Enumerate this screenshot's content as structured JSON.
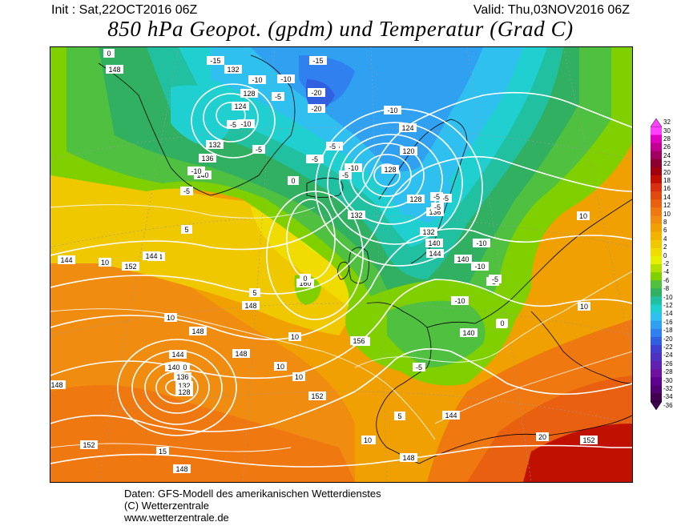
{
  "header": {
    "init_label": "Init : Sat,22OCT2016 06Z",
    "valid_label": "Valid: Thu,03NOV2016 06Z",
    "title": "850 hPa Geopot. (gpdm) und Temperatur (Grad C)"
  },
  "map": {
    "region": "Europe / North Atlantic",
    "colors": {
      "coastline": "#000000",
      "geopotential_isolines": "#ffffff",
      "lat_lon_grid": "#9a9a9a"
    },
    "geopotential_labels": [
      "148",
      "132",
      "128",
      "124",
      "132",
      "136",
      "140",
      "144",
      "152",
      "148",
      "132",
      "124",
      "120",
      "128",
      "128",
      "136",
      "132",
      "140",
      "144",
      "140",
      "156",
      "160",
      "148",
      "144",
      "144",
      "148",
      "156",
      "152",
      "140",
      "144",
      "140",
      "136",
      "132",
      "128",
      "148",
      "152",
      "148",
      "148",
      "144",
      "140",
      "152"
    ],
    "temperature_labels": [
      "0",
      "-15",
      "-10",
      "-5",
      "-15",
      "-20",
      "-10",
      "-5",
      "-10",
      "-5",
      "-10",
      "-20",
      "-5",
      "-10",
      "-5",
      "-10",
      "-5",
      "-10",
      "-5",
      "-5",
      "0",
      "-5",
      "-5",
      "-10",
      "-5",
      "0",
      "5",
      "10",
      "5",
      "0",
      "10",
      "10",
      "5",
      "10",
      "10",
      "10",
      "10",
      "-10",
      "-5",
      "-5",
      "-10",
      "0",
      "-5",
      "5",
      "10",
      "15",
      "20",
      "10"
    ]
  },
  "colorbar": {
    "labels": [
      "32",
      "30",
      "28",
      "26",
      "24",
      "22",
      "20",
      "18",
      "16",
      "14",
      "12",
      "10",
      "8",
      "6",
      "4",
      "2",
      "0",
      "-2",
      "-4",
      "-6",
      "-8",
      "-10",
      "-12",
      "-14",
      "-16",
      "-18",
      "-20",
      "-22",
      "-24",
      "-26",
      "-28",
      "-30",
      "-32",
      "-34",
      "-36"
    ],
    "colors": [
      "#ff40ff",
      "#e000c0",
      "#c00090",
      "#a00060",
      "#8a0030",
      "#a00010",
      "#c01000",
      "#d83010",
      "#e04a10",
      "#e86010",
      "#f07810",
      "#f08c10",
      "#f0a000",
      "#f0b400",
      "#f0c800",
      "#f0dc00",
      "#e8f000",
      "#b4e000",
      "#80d000",
      "#50c040",
      "#30b060",
      "#20c0a0",
      "#20d0d0",
      "#30c0f0",
      "#30a0f0",
      "#3080f0",
      "#3060e0",
      "#4040d0",
      "#5030c0",
      "#6020b0",
      "#7010a0",
      "#600090",
      "#500070",
      "#400050"
    ]
  },
  "footer": {
    "line1": "Daten: GFS-Modell des amerikanischen Wetterdienstes",
    "line2": "(C) Wetterzentrale",
    "line3": "www.wetterzentrale.de"
  }
}
